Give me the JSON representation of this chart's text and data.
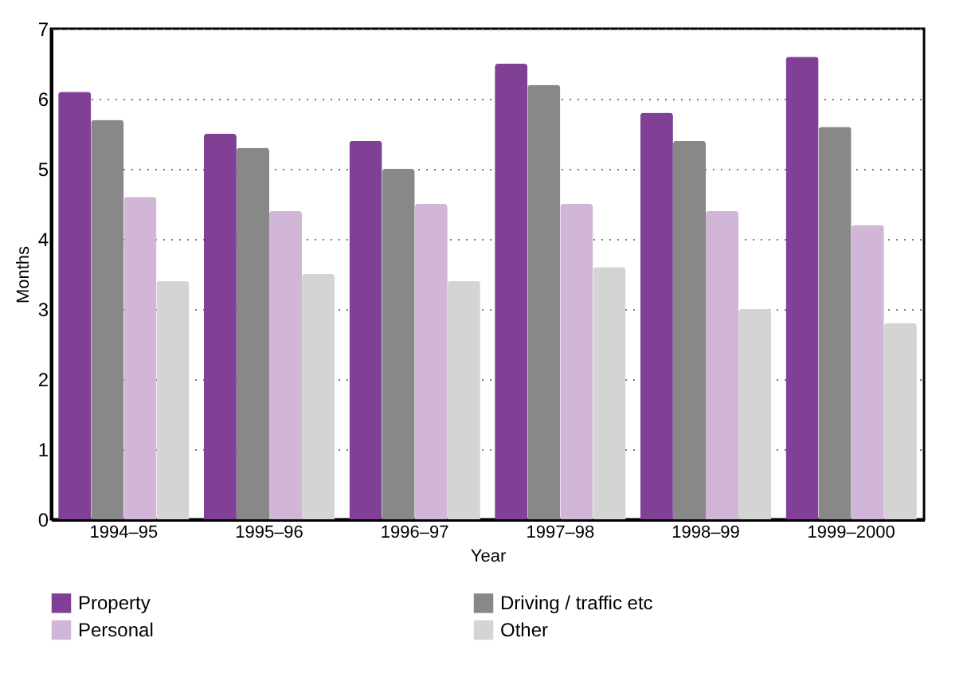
{
  "chart_data": {
    "type": "bar",
    "xlabel": "Year",
    "ylabel": "Months",
    "categories": [
      "1994–95",
      "1995–96",
      "1996–97",
      "1997–98",
      "1998–99",
      "1999–2000"
    ],
    "series": [
      {
        "name": "Property",
        "color": "#7f4096",
        "values": [
          6.1,
          5.5,
          5.4,
          6.5,
          5.8,
          6.6
        ]
      },
      {
        "name": "Driving / traffic etc",
        "color": "#888888",
        "values": [
          5.7,
          5.3,
          5.0,
          6.2,
          5.4,
          5.6
        ]
      },
      {
        "name": "Personal",
        "color": "#d2b6d8",
        "values": [
          4.6,
          4.4,
          4.5,
          4.5,
          4.4,
          4.2
        ]
      },
      {
        "name": "Other",
        "color": "#d4d4d4",
        "values": [
          3.4,
          3.5,
          3.4,
          3.6,
          3.0,
          2.8
        ]
      }
    ],
    "ylim": [
      0,
      7
    ],
    "yticks": [
      0,
      1,
      2,
      3,
      4,
      5,
      6,
      7
    ],
    "grid": "y",
    "legend": "bottom"
  }
}
